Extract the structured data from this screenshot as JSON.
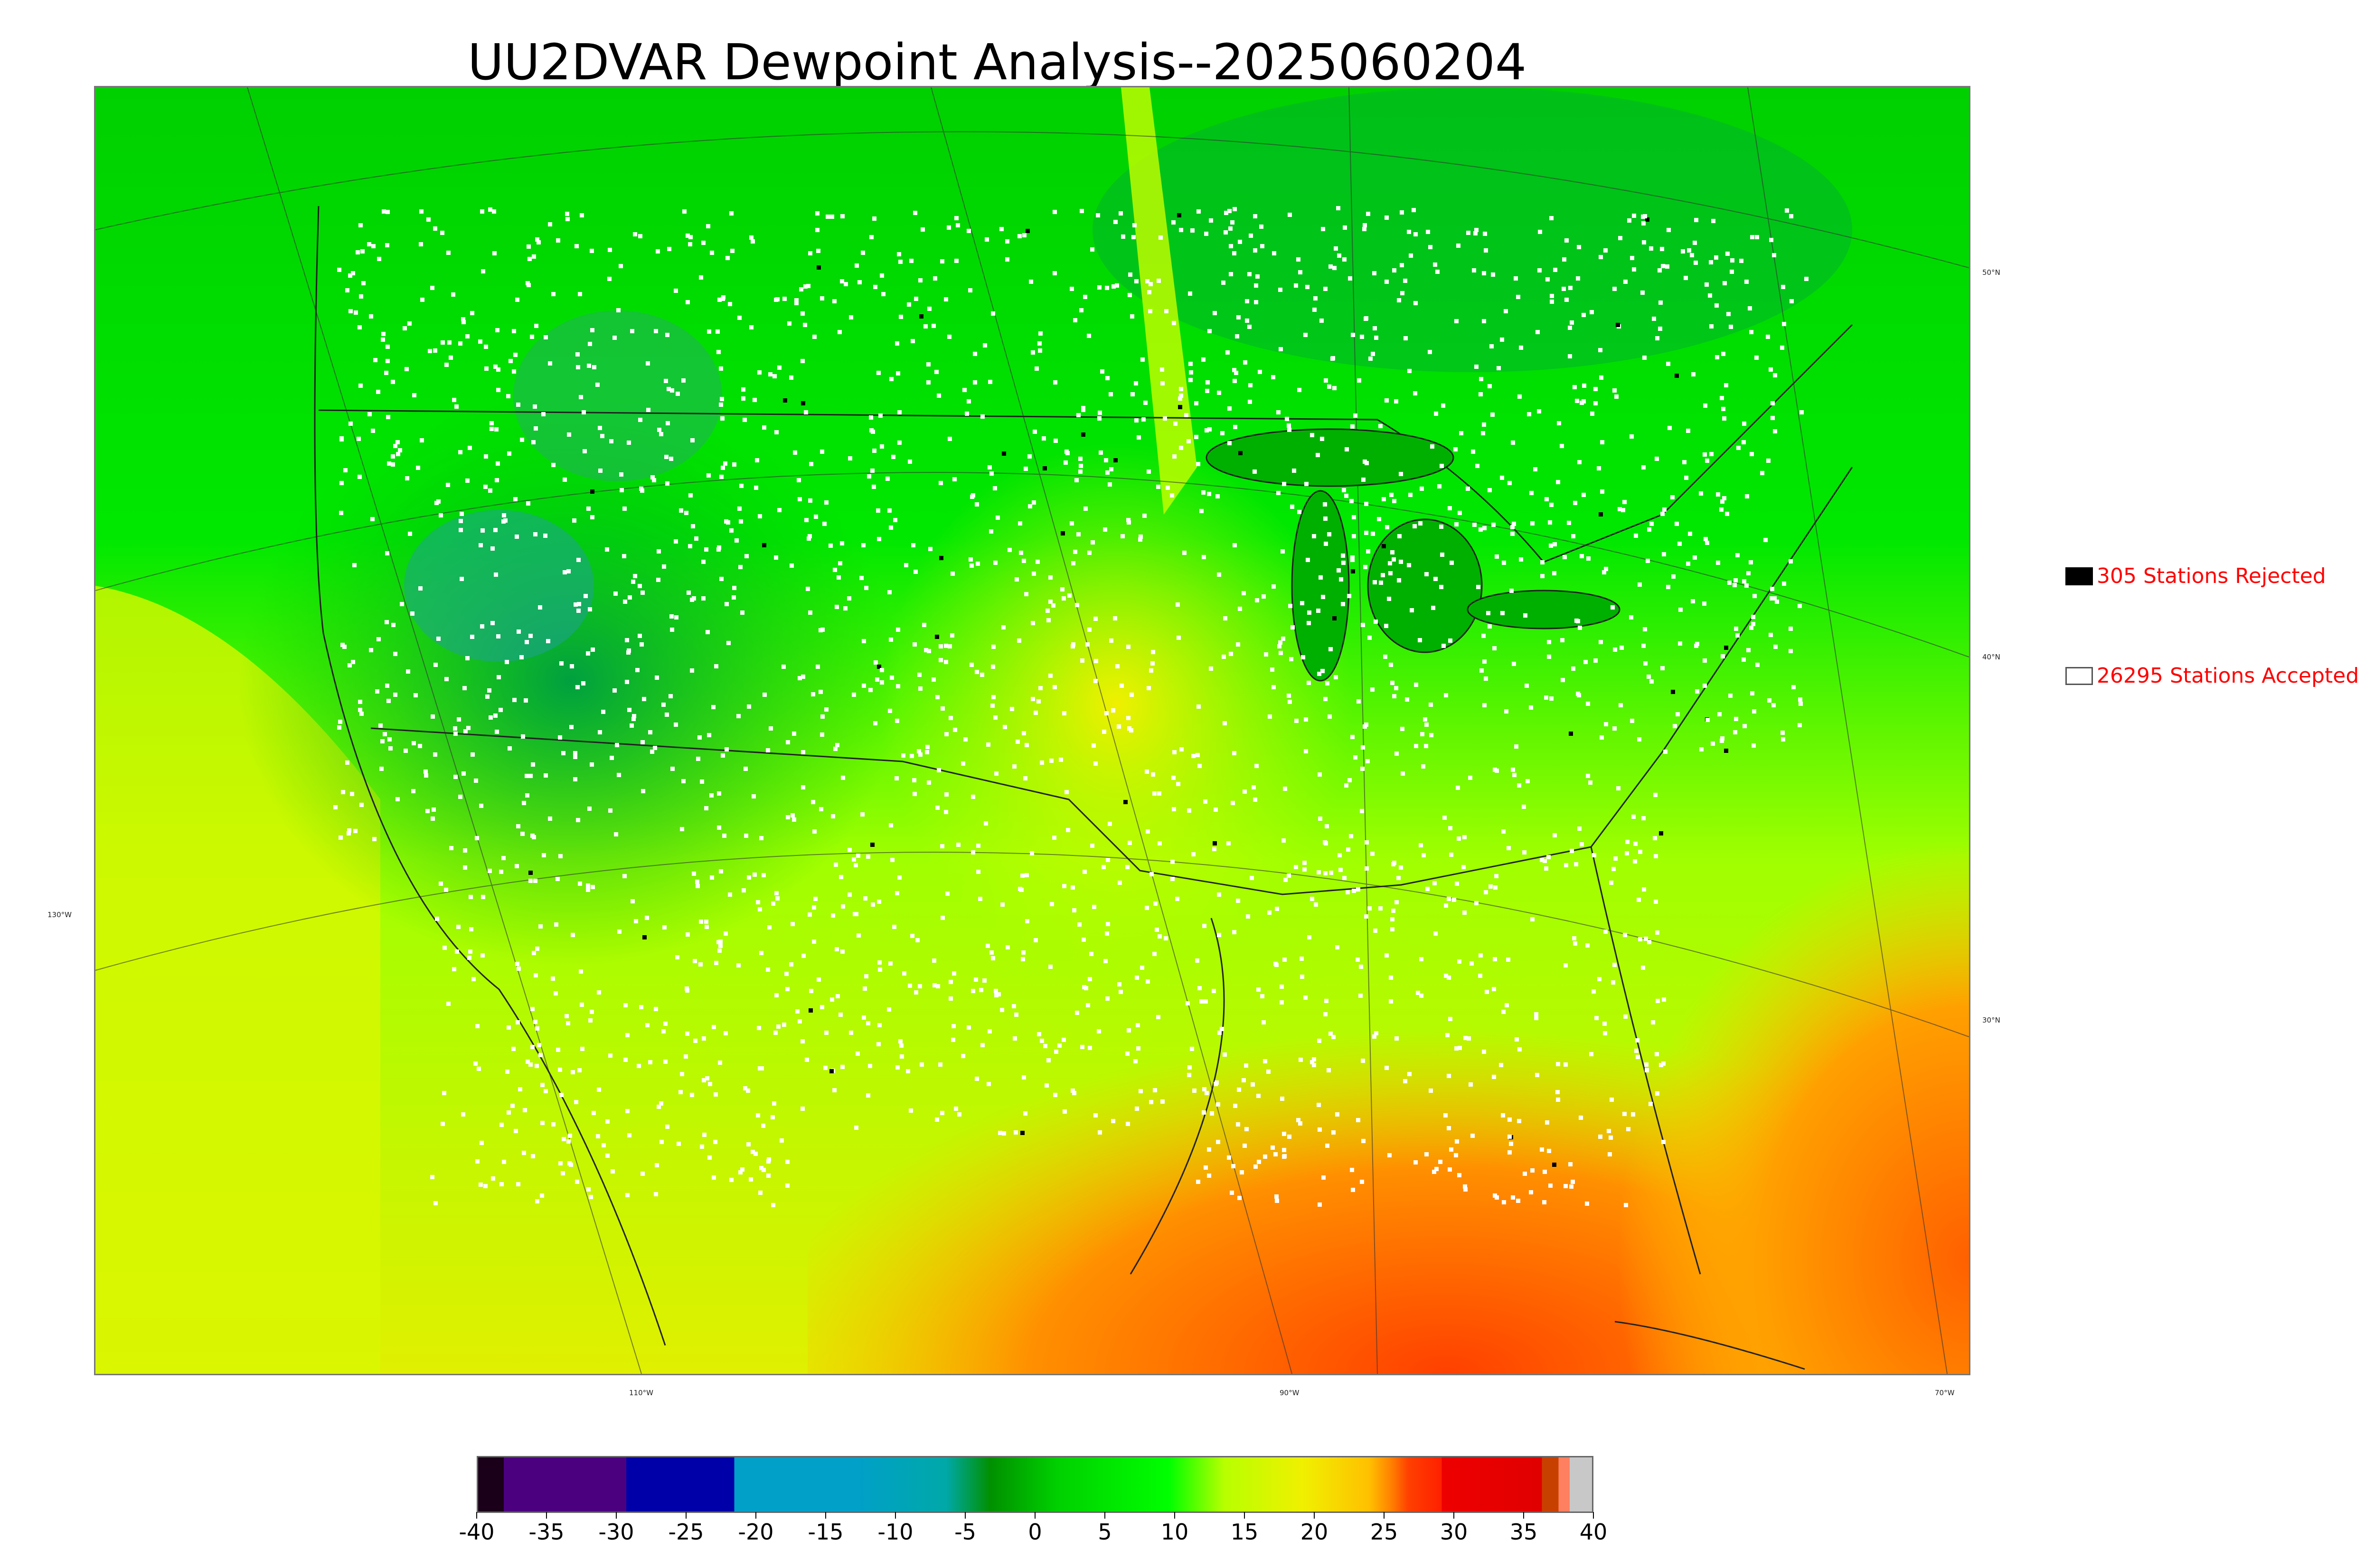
{
  "title": "UU2DVAR Dewpoint Analysis--2025060204",
  "legend": {
    "rejected": {
      "label": "305 Stations Rejected",
      "swatch_color": "#000000"
    },
    "accepted": {
      "label": "26295 Stations Accepted",
      "swatch_color": "#ffffff"
    }
  },
  "map": {
    "latitude_labels": [
      "50°N",
      "40°N",
      "30°N"
    ],
    "longitude_labels": [
      "130°W",
      "110°W",
      "90°W",
      "70°W"
    ]
  },
  "colorbar": {
    "tick_labels": [
      "-40",
      "-35",
      "-30",
      "-25",
      "-20",
      "-15",
      "-10",
      "-5",
      "0",
      "5",
      "10",
      "15",
      "20",
      "25",
      "30",
      "35",
      "40"
    ],
    "colors": {
      "below_minus35": "#1a0018",
      "minus35": "#4b0080",
      "minus30": "#0000a8",
      "minus20": "#00a0c8",
      "minus10": "#00a8a8",
      "minus5": "#009000",
      "zero": "#00d000",
      "five": "#00ff00",
      "ten": "#b8ff00",
      "fifteen": "#f0f000",
      "twenty": "#ffc000",
      "twentyfive": "#ff8000",
      "thirty": "#ee0000",
      "thirtyfive": "#e00000",
      "top": "#c8c8c8"
    }
  }
}
